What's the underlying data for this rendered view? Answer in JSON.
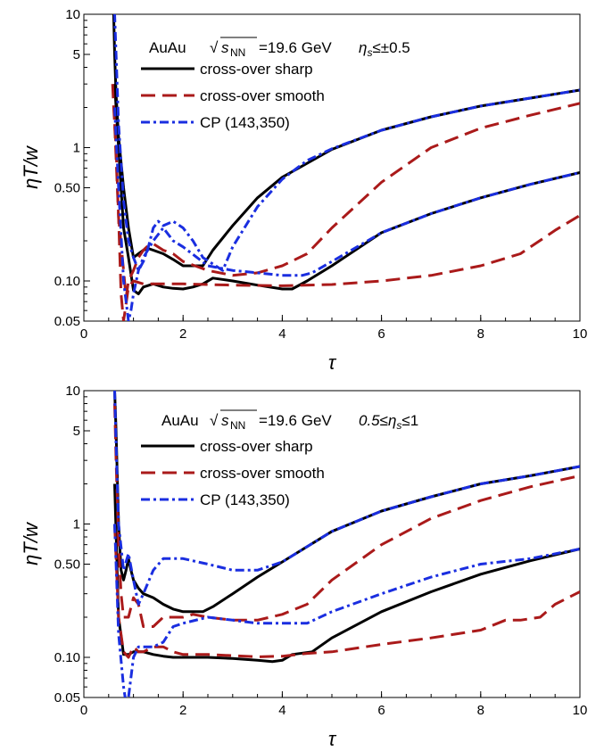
{
  "chart_data": [
    {
      "type": "line",
      "annotation": {
        "system": "AuAu",
        "energy_label": "=19.6 GeV",
        "eta_cut": "η_s≤±0.5"
      },
      "xlabel": "τ",
      "ylabel": "ηT/w",
      "xlim": [
        0,
        10
      ],
      "ylim": [
        0.05,
        10
      ],
      "yscale": "log",
      "xticks": [
        "0",
        "2",
        "4",
        "6",
        "8",
        "10"
      ],
      "yticks": [
        "0.05",
        "0.10",
        "0.50",
        "1",
        "5",
        "10"
      ],
      "legend_position": "top-right",
      "series": [
        {
          "name": "cross-over sharp",
          "color": "#000000",
          "dash": "solid",
          "branches": [
            {
              "x": [
                0.58,
                0.6,
                0.62,
                0.65,
                0.7,
                0.8,
                0.9,
                1.0,
                1.1,
                1.2,
                1.3,
                1.4,
                1.6,
                1.8,
                2.0,
                2.2,
                2.4,
                2.6,
                3.0,
                3.5,
                4.0,
                5.0,
                6.0,
                7.0,
                8.0,
                9.0,
                10.0
              ],
              "y": [
                10,
                10,
                5,
                2.5,
                1.2,
                0.5,
                0.25,
                0.15,
                0.16,
                0.17,
                0.175,
                0.17,
                0.16,
                0.145,
                0.13,
                0.13,
                0.13,
                0.17,
                0.26,
                0.42,
                0.6,
                0.97,
                1.35,
                1.7,
                2.05,
                2.35,
                2.7
              ]
            },
            {
              "x": [
                0.62,
                0.7,
                0.8,
                0.9,
                1.0,
                1.1,
                1.2,
                1.4,
                1.6,
                1.8,
                2.0,
                2.2,
                2.4,
                2.6,
                3.0,
                3.5,
                4.0,
                4.2,
                4.5,
                5.0,
                6.0,
                7.0,
                8.0,
                9.0,
                10.0
              ],
              "y": [
                3,
                1,
                0.25,
                0.15,
                0.085,
                0.08,
                0.09,
                0.095,
                0.09,
                0.088,
                0.087,
                0.09,
                0.095,
                0.105,
                0.1,
                0.093,
                0.087,
                0.087,
                0.1,
                0.13,
                0.23,
                0.32,
                0.42,
                0.53,
                0.65
              ]
            }
          ]
        },
        {
          "name": "cross-over smooth",
          "color": "#aa1a1a",
          "dash": "long-dash",
          "branches": [
            {
              "x": [
                0.58,
                0.6,
                0.65,
                0.7,
                0.8,
                0.85,
                0.9,
                1.0,
                1.1,
                1.2,
                1.3,
                1.4,
                1.6,
                1.8,
                2.0,
                2.5,
                3.0,
                3.5,
                4.0,
                4.5,
                5.0,
                6.0,
                7.0,
                8.0,
                9.0,
                10.0
              ],
              "y": [
                3,
                2,
                1,
                0.3,
                0.12,
                0.075,
                0.1,
                0.12,
                0.15,
                0.17,
                0.185,
                0.19,
                0.17,
                0.16,
                0.14,
                0.12,
                0.11,
                0.115,
                0.13,
                0.16,
                0.25,
                0.55,
                1.0,
                1.4,
                1.75,
                2.15
              ]
            },
            {
              "x": [
                0.62,
                0.7,
                0.75,
                0.8,
                0.9,
                1.0,
                1.2,
                1.4,
                1.6,
                1.8,
                2.0,
                2.5,
                3.0,
                4.0,
                5.0,
                6.0,
                7.0,
                8.0,
                8.8,
                9.5,
                10.0
              ],
              "y": [
                1.5,
                0.3,
                0.08,
                0.05,
                0.09,
                0.1,
                0.095,
                0.095,
                0.095,
                0.095,
                0.095,
                0.094,
                0.093,
                0.092,
                0.094,
                0.1,
                0.11,
                0.13,
                0.16,
                0.24,
                0.31
              ]
            }
          ]
        },
        {
          "name": "CP (143,350)",
          "color": "#1a2ee0",
          "dash": "dash-dot",
          "branches": [
            {
              "x": [
                0.6,
                0.62,
                0.65,
                0.7,
                0.8,
                0.9,
                1.0,
                1.1,
                1.2,
                1.3,
                1.4,
                1.5,
                1.6,
                1.8,
                2.0,
                2.2,
                2.4,
                2.8,
                3.0,
                3.5,
                4.0,
                4.5,
                5.0,
                6.0,
                7.0,
                8.0,
                9.0,
                10.0
              ],
              "y": [
                10,
                10,
                5,
                1.5,
                0.4,
                0.2,
                0.15,
                0.12,
                0.14,
                0.18,
                0.25,
                0.28,
                0.26,
                0.28,
                0.25,
                0.2,
                0.15,
                0.12,
                0.18,
                0.36,
                0.58,
                0.8,
                0.98,
                1.35,
                1.7,
                2.05,
                2.35,
                2.7
              ]
            },
            {
              "x": [
                0.62,
                0.7,
                0.8,
                0.9,
                0.95,
                1.0,
                1.1,
                1.2,
                1.4,
                1.6,
                1.8,
                2.0,
                2.5,
                3.0,
                3.5,
                4.0,
                4.4,
                4.6,
                5.0,
                6.0,
                7.0,
                8.0,
                9.0,
                10.0
              ],
              "y": [
                2,
                0.5,
                0.1,
                0.05,
                0.06,
                0.08,
                0.12,
                0.15,
                0.2,
                0.25,
                0.2,
                0.18,
                0.13,
                0.12,
                0.115,
                0.11,
                0.11,
                0.115,
                0.14,
                0.23,
                0.32,
                0.42,
                0.53,
                0.65
              ]
            }
          ]
        }
      ]
    },
    {
      "type": "line",
      "annotation": {
        "system": "AuAu",
        "energy_label": "=19.6 GeV",
        "eta_cut": "0.5≤η_s≤1"
      },
      "xlabel": "τ",
      "ylabel": "ηT/w",
      "xlim": [
        0,
        10
      ],
      "ylim": [
        0.05,
        10
      ],
      "yscale": "log",
      "xticks": [
        "0",
        "2",
        "4",
        "6",
        "8",
        "10"
      ],
      "yticks": [
        "0.05",
        "0.10",
        "0.50",
        "1",
        "5",
        "10"
      ],
      "legend_position": "top-right",
      "series": [
        {
          "name": "cross-over sharp",
          "color": "#000000",
          "dash": "solid",
          "branches": [
            {
              "x": [
                0.62,
                0.65,
                0.7,
                0.75,
                0.8,
                0.85,
                0.9,
                0.95,
                1.0,
                1.1,
                1.2,
                1.4,
                1.6,
                1.8,
                2.0,
                2.2,
                2.4,
                2.6,
                3.0,
                3.5,
                4.0,
                5.0,
                6.0,
                7.0,
                8.0,
                9.0,
                10.0
              ],
              "y": [
                10,
                5,
                1.0,
                0.45,
                0.38,
                0.45,
                0.55,
                0.45,
                0.38,
                0.33,
                0.3,
                0.28,
                0.25,
                0.23,
                0.22,
                0.22,
                0.22,
                0.24,
                0.3,
                0.4,
                0.52,
                0.88,
                1.25,
                1.6,
                2.0,
                2.3,
                2.7
              ]
            },
            {
              "x": [
                0.62,
                0.7,
                0.8,
                0.9,
                1.0,
                1.2,
                1.4,
                1.6,
                1.8,
                2.0,
                2.5,
                3.0,
                3.5,
                3.8,
                4.0,
                4.2,
                4.6,
                5.0,
                6.0,
                7.0,
                8.0,
                9.0,
                10.0
              ],
              "y": [
                2,
                0.2,
                0.105,
                0.105,
                0.11,
                0.11,
                0.105,
                0.102,
                0.1,
                0.1,
                0.1,
                0.098,
                0.095,
                0.093,
                0.095,
                0.105,
                0.11,
                0.14,
                0.22,
                0.31,
                0.42,
                0.53,
                0.65
              ]
            }
          ]
        },
        {
          "name": "cross-over smooth",
          "color": "#aa1a1a",
          "dash": "long-dash",
          "branches": [
            {
              "x": [
                0.62,
                0.65,
                0.7,
                0.75,
                0.8,
                0.9,
                1.0,
                1.1,
                1.2,
                1.4,
                1.6,
                1.8,
                2.0,
                2.2,
                2.5,
                3.0,
                3.5,
                4.0,
                4.5,
                5.0,
                6.0,
                7.0,
                8.0,
                9.0,
                10.0
              ],
              "y": [
                8,
                3,
                0.7,
                0.3,
                0.2,
                0.2,
                0.28,
                0.25,
                0.17,
                0.17,
                0.2,
                0.2,
                0.2,
                0.21,
                0.2,
                0.19,
                0.19,
                0.21,
                0.25,
                0.38,
                0.7,
                1.1,
                1.5,
                1.9,
                2.3
              ]
            },
            {
              "x": [
                0.62,
                0.7,
                0.8,
                0.9,
                1.0,
                1.1,
                1.2,
                1.4,
                1.6,
                1.8,
                2.0,
                2.5,
                3.0,
                3.5,
                4.0,
                4.5,
                5.0,
                6.0,
                7.0,
                8.0,
                8.5,
                8.8,
                9.2,
                9.5,
                10.0
              ],
              "y": [
                1,
                0.2,
                0.11,
                0.1,
                0.12,
                0.11,
                0.11,
                0.12,
                0.12,
                0.11,
                0.105,
                0.105,
                0.103,
                0.101,
                0.102,
                0.107,
                0.11,
                0.125,
                0.14,
                0.16,
                0.19,
                0.19,
                0.2,
                0.25,
                0.31
              ]
            }
          ]
        },
        {
          "name": "CP (143,350)",
          "color": "#1a2ee0",
          "dash": "dash-dot",
          "branches": [
            {
              "x": [
                0.62,
                0.65,
                0.7,
                0.8,
                0.9,
                1.0,
                1.1,
                1.2,
                1.4,
                1.6,
                1.8,
                2.0,
                2.5,
                3.0,
                3.5,
                4.0,
                5.0,
                6.0,
                7.0,
                8.0,
                9.0,
                10.0
              ],
              "y": [
                10,
                4,
                1.0,
                0.45,
                0.6,
                0.38,
                0.25,
                0.3,
                0.45,
                0.55,
                0.55,
                0.55,
                0.5,
                0.45,
                0.45,
                0.52,
                0.88,
                1.25,
                1.6,
                2.0,
                2.3,
                2.7
              ]
            },
            {
              "x": [
                0.62,
                0.7,
                0.8,
                0.85,
                0.9,
                1.0,
                1.1,
                1.2,
                1.4,
                1.6,
                1.8,
                2.0,
                2.5,
                3.0,
                3.5,
                4.0,
                4.5,
                5.0,
                6.0,
                7.0,
                8.0,
                9.0,
                10.0
              ],
              "y": [
                1,
                0.15,
                0.06,
                0.045,
                0.05,
                0.1,
                0.12,
                0.12,
                0.12,
                0.13,
                0.17,
                0.18,
                0.2,
                0.19,
                0.18,
                0.18,
                0.18,
                0.22,
                0.3,
                0.4,
                0.5,
                0.55,
                0.65
              ]
            }
          ]
        }
      ]
    }
  ]
}
